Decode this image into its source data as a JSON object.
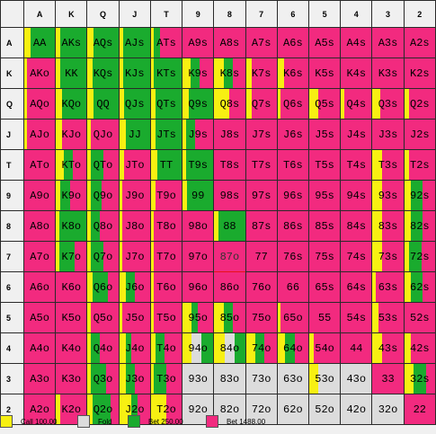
{
  "colors": {
    "call": "#f7f012",
    "fold": "#dcdcdc",
    "bet250": "#1aab2e",
    "bet1488": "#f22a7f"
  },
  "ranks": [
    "A",
    "K",
    "Q",
    "J",
    "T",
    "9",
    "8",
    "7",
    "6",
    "5",
    "4",
    "3",
    "2"
  ],
  "selected_hand": "87o",
  "legend": [
    {
      "key": "call",
      "label": "Call 100.00"
    },
    {
      "key": "fold",
      "label": "Fold"
    },
    {
      "key": "bet250",
      "label": "Bet 250.00"
    },
    {
      "key": "bet1488",
      "label": "Bet 1488.00"
    }
  ],
  "grid": [
    [
      {
        "label": "AA",
        "mix": {
          "call": 0.2,
          "bet250": 0.8
        }
      },
      {
        "label": "AKs",
        "mix": {
          "call": 0.15,
          "bet250": 0.85
        }
      },
      {
        "label": "AQs",
        "mix": {
          "call": 0.2,
          "bet250": 0.8
        }
      },
      {
        "label": "AJs",
        "mix": {
          "call": 0.12,
          "bet250": 0.88
        }
      },
      {
        "label": "ATs",
        "mix": {
          "call": 0.1,
          "bet250": 0.2,
          "bet1488": 0.7
        }
      },
      {
        "label": "A9s",
        "mix": {
          "bet1488": 1
        }
      },
      {
        "label": "A8s",
        "mix": {
          "bet1488": 1
        }
      },
      {
        "label": "A7s",
        "mix": {
          "bet1488": 1
        }
      },
      {
        "label": "A6s",
        "mix": {
          "bet1488": 1
        }
      },
      {
        "label": "A5s",
        "mix": {
          "bet1488": 1
        }
      },
      {
        "label": "A4s",
        "mix": {
          "bet1488": 1
        }
      },
      {
        "label": "A3s",
        "mix": {
          "bet1488": 1
        }
      },
      {
        "label": "A2s",
        "mix": {
          "bet1488": 1
        }
      }
    ],
    [
      {
        "label": "AKo",
        "mix": {
          "call": 0.1,
          "bet1488": 0.9
        }
      },
      {
        "label": "KK",
        "mix": {
          "call": 0.15,
          "bet250": 0.85
        }
      },
      {
        "label": "KQs",
        "mix": {
          "call": 0.15,
          "bet250": 0.85
        }
      },
      {
        "label": "KJs",
        "mix": {
          "call": 0.12,
          "bet250": 0.88
        }
      },
      {
        "label": "KTs",
        "mix": {
          "call": 0.1,
          "bet250": 0.9
        }
      },
      {
        "label": "K9s",
        "mix": {
          "call": 0.25,
          "bet250": 0.3,
          "bet1488": 0.45
        }
      },
      {
        "label": "K8s",
        "mix": {
          "call": 0.3,
          "bet250": 0.3,
          "bet1488": 0.4
        }
      },
      {
        "label": "K7s",
        "mix": {
          "call": 0.2,
          "bet1488": 0.8
        }
      },
      {
        "label": "K6s",
        "mix": {
          "call": 0.2,
          "bet1488": 0.8
        }
      },
      {
        "label": "K5s",
        "mix": {
          "bet1488": 1
        }
      },
      {
        "label": "K4s",
        "mix": {
          "bet1488": 1
        }
      },
      {
        "label": "K3s",
        "mix": {
          "bet1488": 1
        }
      },
      {
        "label": "K2s",
        "mix": {
          "bet1488": 1
        }
      }
    ],
    [
      {
        "label": "AQo",
        "mix": {
          "call": 0.1,
          "bet1488": 0.9
        }
      },
      {
        "label": "KQo",
        "mix": {
          "call": 0.2,
          "bet250": 0.8
        }
      },
      {
        "label": "QQ",
        "mix": {
          "call": 0.2,
          "bet250": 0.8
        }
      },
      {
        "label": "QJs",
        "mix": {
          "call": 0.15,
          "bet250": 0.85
        }
      },
      {
        "label": "QTs",
        "mix": {
          "call": 0.15,
          "bet250": 0.85
        }
      },
      {
        "label": "Q9s",
        "mix": {
          "call": 0.2,
          "bet250": 0.8
        }
      },
      {
        "label": "Q8s",
        "mix": {
          "call": 0.5,
          "bet1488": 0.5
        }
      },
      {
        "label": "Q7s",
        "mix": {
          "call": 0.2,
          "bet1488": 0.8
        }
      },
      {
        "label": "Q6s",
        "mix": {
          "call": 0.1,
          "bet1488": 0.9
        }
      },
      {
        "label": "Q5s",
        "mix": {
          "call": 0.3,
          "bet1488": 0.7
        }
      },
      {
        "label": "Q4s",
        "mix": {
          "call": 0.1,
          "bet1488": 0.9
        }
      },
      {
        "label": "Q3s",
        "mix": {
          "call": 0.25,
          "bet1488": 0.75
        }
      },
      {
        "label": "Q2s",
        "mix": {
          "call": 0.15,
          "bet1488": 0.85
        }
      }
    ],
    [
      {
        "label": "AJo",
        "mix": {
          "call": 0.1,
          "bet1488": 0.9
        }
      },
      {
        "label": "KJo",
        "mix": {
          "call": 0.2,
          "bet1488": 0.8
        }
      },
      {
        "label": "QJo",
        "mix": {
          "call": 0.1,
          "bet1488": 0.9
        }
      },
      {
        "label": "JJ",
        "mix": {
          "call": 0.2,
          "bet250": 0.8
        }
      },
      {
        "label": "JTs",
        "mix": {
          "call": 0.15,
          "bet250": 0.85
        }
      },
      {
        "label": "J9s",
        "mix": {
          "call": 0.1,
          "bet250": 0.3,
          "bet1488": 0.6
        }
      },
      {
        "label": "J8s",
        "mix": {
          "bet1488": 1
        }
      },
      {
        "label": "J7s",
        "mix": {
          "bet1488": 1
        }
      },
      {
        "label": "J6s",
        "mix": {
          "bet1488": 1
        }
      },
      {
        "label": "J5s",
        "mix": {
          "bet1488": 1
        }
      },
      {
        "label": "J4s",
        "mix": {
          "bet1488": 1
        }
      },
      {
        "label": "J3s",
        "mix": {
          "bet1488": 1
        }
      },
      {
        "label": "J2s",
        "mix": {
          "bet1488": 1
        }
      }
    ],
    [
      {
        "label": "ATo",
        "mix": {
          "bet1488": 1
        }
      },
      {
        "label": "KTo",
        "mix": {
          "call": 0.25,
          "bet250": 0.3,
          "bet1488": 0.45
        }
      },
      {
        "label": "QTo",
        "mix": {
          "call": 0.1,
          "bet250": 0.4,
          "bet1488": 0.5
        }
      },
      {
        "label": "JTo",
        "mix": {
          "call": 0.15,
          "bet1488": 0.85
        }
      },
      {
        "label": "TT",
        "mix": {
          "call": 0.2,
          "bet250": 0.8
        }
      },
      {
        "label": "T9s",
        "mix": {
          "call": 0.1,
          "bet250": 0.9
        }
      },
      {
        "label": "T8s",
        "mix": {
          "bet1488": 1
        }
      },
      {
        "label": "T7s",
        "mix": {
          "bet1488": 1
        }
      },
      {
        "label": "T6s",
        "mix": {
          "bet1488": 1
        }
      },
      {
        "label": "T5s",
        "mix": {
          "bet1488": 1
        }
      },
      {
        "label": "T4s",
        "mix": {
          "bet1488": 1
        }
      },
      {
        "label": "T3s",
        "mix": {
          "call": 0.3,
          "bet1488": 0.7
        }
      },
      {
        "label": "T2s",
        "mix": {
          "call": 0.15,
          "bet1488": 0.85
        }
      }
    ],
    [
      {
        "label": "A9o",
        "mix": {
          "bet1488": 1
        }
      },
      {
        "label": "K9o",
        "mix": {
          "call": 0.15,
          "bet250": 0.3,
          "bet1488": 0.55
        }
      },
      {
        "label": "Q9o",
        "mix": {
          "call": 0.1,
          "bet250": 0.35,
          "bet1488": 0.55
        }
      },
      {
        "label": "J9o",
        "mix": {
          "call": 0.1,
          "bet1488": 0.9
        }
      },
      {
        "label": "T9o",
        "mix": {
          "call": 0.15,
          "bet1488": 0.85
        }
      },
      {
        "label": "99",
        "mix": {
          "call": 0.15,
          "bet250": 0.85
        }
      },
      {
        "label": "98s",
        "mix": {
          "bet1488": 1
        }
      },
      {
        "label": "97s",
        "mix": {
          "bet1488": 1
        }
      },
      {
        "label": "96s",
        "mix": {
          "bet1488": 1
        }
      },
      {
        "label": "95s",
        "mix": {
          "bet1488": 1
        }
      },
      {
        "label": "94s",
        "mix": {
          "bet1488": 1
        }
      },
      {
        "label": "93s",
        "mix": {
          "call": 0.3,
          "bet1488": 0.7
        }
      },
      {
        "label": "92s",
        "mix": {
          "call": 0.2,
          "bet250": 0.4,
          "bet1488": 0.4
        }
      }
    ],
    [
      {
        "label": "A8o",
        "mix": {
          "bet1488": 1
        }
      },
      {
        "label": "K8o",
        "mix": {
          "call": 0.1,
          "bet250": 0.9
        }
      },
      {
        "label": "Q8o",
        "mix": {
          "call": 0.1,
          "bet250": 0.3,
          "bet1488": 0.6
        }
      },
      {
        "label": "J8o",
        "mix": {
          "call": 0.1,
          "bet1488": 0.9
        }
      },
      {
        "label": "T8o",
        "mix": {
          "call": 0.1,
          "bet1488": 0.9
        }
      },
      {
        "label": "98o",
        "mix": {
          "bet1488": 1
        }
      },
      {
        "label": "88",
        "mix": {
          "call": 0.15,
          "bet250": 0.85
        }
      },
      {
        "label": "87s",
        "mix": {
          "bet1488": 1
        }
      },
      {
        "label": "86s",
        "mix": {
          "bet1488": 1
        }
      },
      {
        "label": "85s",
        "mix": {
          "bet1488": 1
        }
      },
      {
        "label": "84s",
        "mix": {
          "bet1488": 1
        }
      },
      {
        "label": "83s",
        "mix": {
          "call": 0.3,
          "bet1488": 0.7
        }
      },
      {
        "label": "82s",
        "mix": {
          "call": 0.2,
          "bet250": 0.4,
          "bet1488": 0.4
        }
      }
    ],
    [
      {
        "label": "A7o",
        "mix": {
          "bet1488": 1
        }
      },
      {
        "label": "K7o",
        "mix": {
          "call": 0.1,
          "bet250": 0.5,
          "bet1488": 0.4
        }
      },
      {
        "label": "Q7o",
        "mix": {
          "call": 0.1,
          "bet250": 0.4,
          "bet1488": 0.5
        }
      },
      {
        "label": "J7o",
        "mix": {
          "call": 0.1,
          "bet1488": 0.9
        }
      },
      {
        "label": "T7o",
        "mix": {
          "call": 0.1,
          "bet1488": 0.9
        }
      },
      {
        "label": "97o",
        "mix": {
          "bet1488": 1
        }
      },
      {
        "label": "87o",
        "mix": {
          "bet1488": 1
        }
      },
      {
        "label": "77",
        "mix": {
          "bet1488": 1
        }
      },
      {
        "label": "76s",
        "mix": {
          "bet1488": 1
        }
      },
      {
        "label": "75s",
        "mix": {
          "bet1488": 1
        }
      },
      {
        "label": "74s",
        "mix": {
          "bet1488": 1
        }
      },
      {
        "label": "73s",
        "mix": {
          "call": 0.3,
          "bet1488": 0.7
        }
      },
      {
        "label": "72s",
        "mix": {
          "call": 0.15,
          "bet250": 0.4,
          "bet1488": 0.45
        }
      }
    ],
    [
      {
        "label": "A6o",
        "mix": {
          "bet1488": 1
        }
      },
      {
        "label": "K6o",
        "mix": {
          "bet1488": 1
        }
      },
      {
        "label": "Q6o",
        "mix": {
          "call": 0.15,
          "bet250": 0.5,
          "bet1488": 0.35
        }
      },
      {
        "label": "J6o",
        "mix": {
          "call": 0.2,
          "bet250": 0.3,
          "bet1488": 0.5
        }
      },
      {
        "label": "T6o",
        "mix": {
          "call": 0.1,
          "bet1488": 0.9
        }
      },
      {
        "label": "96o",
        "mix": {
          "bet1488": 1
        }
      },
      {
        "label": "86o",
        "mix": {
          "bet1488": 1
        }
      },
      {
        "label": "76o",
        "mix": {
          "bet1488": 1
        }
      },
      {
        "label": "66",
        "mix": {
          "bet1488": 1
        }
      },
      {
        "label": "65s",
        "mix": {
          "bet1488": 1
        }
      },
      {
        "label": "64s",
        "mix": {
          "bet1488": 1
        }
      },
      {
        "label": "63s",
        "mix": {
          "call": 0.1,
          "bet1488": 0.9
        }
      },
      {
        "label": "62s",
        "mix": {
          "call": 0.2,
          "bet250": 0.4,
          "bet1488": 0.4
        }
      }
    ],
    [
      {
        "label": "A5o",
        "mix": {
          "bet1488": 1
        }
      },
      {
        "label": "K5o",
        "mix": {
          "bet1488": 1
        }
      },
      {
        "label": "Q5o",
        "mix": {
          "call": 0.1,
          "bet1488": 0.9
        }
      },
      {
        "label": "J5o",
        "mix": {
          "call": 0.1,
          "bet1488": 0.9
        }
      },
      {
        "label": "T5o",
        "mix": {
          "call": 0.1,
          "bet1488": 0.9
        }
      },
      {
        "label": "95o",
        "mix": {
          "call": 0.3,
          "bet250": 0.2,
          "bet1488": 0.5
        }
      },
      {
        "label": "85o",
        "mix": {
          "call": 0.3,
          "bet250": 0.3,
          "bet1488": 0.4
        }
      },
      {
        "label": "75o",
        "mix": {
          "bet1488": 1
        }
      },
      {
        "label": "65o",
        "mix": {
          "call": 0.1,
          "bet1488": 0.9
        }
      },
      {
        "label": "55",
        "mix": {
          "bet1488": 1
        }
      },
      {
        "label": "54s",
        "mix": {
          "bet1488": 1
        }
      },
      {
        "label": "53s",
        "mix": {
          "call": 0.2,
          "bet1488": 0.8
        }
      },
      {
        "label": "52s",
        "mix": {
          "bet1488": 1
        }
      }
    ],
    [
      {
        "label": "A4o",
        "mix": {
          "bet1488": 1
        }
      },
      {
        "label": "K4o",
        "mix": {
          "bet1488": 1
        }
      },
      {
        "label": "Q4o",
        "mix": {
          "call": 0.1,
          "bet250": 0.3,
          "bet1488": 0.6
        }
      },
      {
        "label": "J4o",
        "mix": {
          "call": 0.2,
          "bet250": 0.2,
          "bet1488": 0.6
        }
      },
      {
        "label": "T4o",
        "mix": {
          "call": 0.15,
          "bet250": 0.3,
          "bet1488": 0.55
        }
      },
      {
        "label": "94o",
        "mix": {
          "call": 0.3,
          "fold": 0.3,
          "bet250": 0.4
        }
      },
      {
        "label": "84o",
        "mix": {
          "call": 0.35,
          "fold": 0.3,
          "bet250": 0.35
        }
      },
      {
        "label": "74o",
        "mix": {
          "call": 0.3,
          "bet250": 0.3,
          "bet1488": 0.4
        }
      },
      {
        "label": "64o",
        "mix": {
          "call": 0.25,
          "bet250": 0.3,
          "bet1488": 0.45
        }
      },
      {
        "label": "54o",
        "mix": {
          "call": 0.15,
          "bet1488": 0.85
        }
      },
      {
        "label": "44",
        "mix": {
          "bet1488": 1
        }
      },
      {
        "label": "43s",
        "mix": {
          "call": 0.3,
          "bet1488": 0.7
        }
      },
      {
        "label": "42s",
        "mix": {
          "call": 0.2,
          "bet1488": 0.8
        }
      }
    ],
    [
      {
        "label": "A3o",
        "mix": {
          "bet1488": 1
        }
      },
      {
        "label": "K3o",
        "mix": {
          "bet1488": 1
        }
      },
      {
        "label": "Q3o",
        "mix": {
          "call": 0.1,
          "bet250": 0.5,
          "bet1488": 0.4
        }
      },
      {
        "label": "J3o",
        "mix": {
          "call": 0.2,
          "bet250": 0.3,
          "bet1488": 0.5
        }
      },
      {
        "label": "T3o",
        "mix": {
          "call": 0.1,
          "bet250": 0.4,
          "bet1488": 0.5
        }
      },
      {
        "label": "93o",
        "mix": {
          "fold": 1
        }
      },
      {
        "label": "83o",
        "mix": {
          "fold": 1
        }
      },
      {
        "label": "73o",
        "mix": {
          "fold": 1
        }
      },
      {
        "label": "63o",
        "mix": {
          "fold": 1
        }
      },
      {
        "label": "53o",
        "mix": {
          "call": 0.3,
          "fold": 0.7
        }
      },
      {
        "label": "43o",
        "mix": {
          "fold": 1
        }
      },
      {
        "label": "33",
        "mix": {
          "bet1488": 1
        }
      },
      {
        "label": "32s",
        "mix": {
          "call": 0.3,
          "bet250": 0.4,
          "bet1488": 0.3
        }
      }
    ],
    [
      {
        "label": "A2o",
        "mix": {
          "bet1488": 1
        }
      },
      {
        "label": "K2o",
        "mix": {
          "call": 0.15,
          "bet1488": 0.85
        }
      },
      {
        "label": "Q2o",
        "mix": {
          "call": 0.15,
          "bet250": 0.6,
          "bet1488": 0.25
        }
      },
      {
        "label": "J2o",
        "mix": {
          "call": 0.4,
          "bet250": 0.2,
          "bet1488": 0.4
        }
      },
      {
        "label": "T2o",
        "mix": {
          "call": 0.5,
          "bet1488": 0.5
        }
      },
      {
        "label": "92o",
        "mix": {
          "fold": 1
        }
      },
      {
        "label": "82o",
        "mix": {
          "fold": 1
        }
      },
      {
        "label": "72o",
        "mix": {
          "fold": 1
        }
      },
      {
        "label": "62o",
        "mix": {
          "fold": 1
        }
      },
      {
        "label": "52o",
        "mix": {
          "fold": 1
        }
      },
      {
        "label": "42o",
        "mix": {
          "fold": 1
        }
      },
      {
        "label": "32o",
        "mix": {
          "fold": 1
        }
      },
      {
        "label": "22",
        "mix": {
          "bet1488": 1
        }
      }
    ]
  ]
}
